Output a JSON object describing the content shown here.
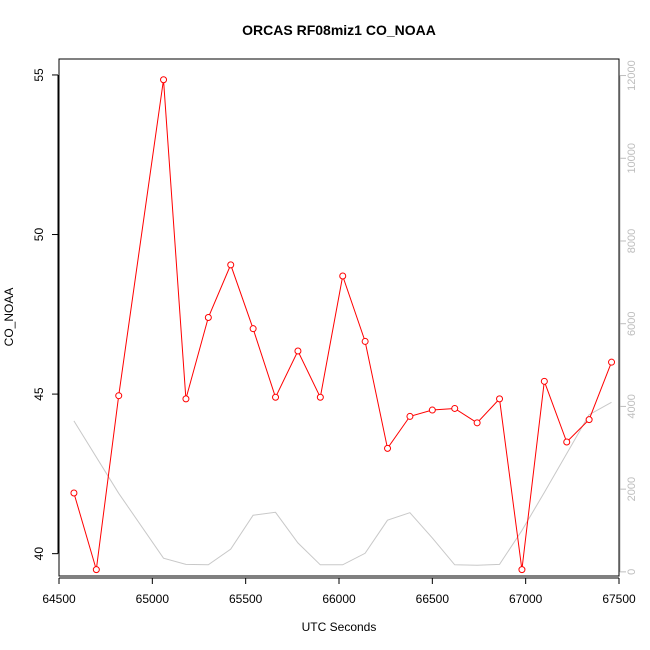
{
  "chart_data": {
    "type": "line",
    "title": "ORCAS RF08miz1 CO_NOAA",
    "xlabel": "UTC Seconds",
    "ylabel": "CO_NOAA",
    "xlim": [
      64500,
      67500
    ],
    "ylim": [
      39.3,
      55.5
    ],
    "y2lim": [
      -100,
      12400
    ],
    "x_ticks": [
      64500,
      65000,
      65500,
      66000,
      66500,
      67000,
      67500
    ],
    "y_ticks": [
      40,
      45,
      50,
      55
    ],
    "y2_ticks": [
      0,
      2000,
      4000,
      6000,
      8000,
      10000,
      12000
    ],
    "grid": false,
    "series": [
      {
        "axis": "left",
        "color": "#ff0000",
        "markers": true,
        "x": [
          64580,
          64700,
          64820,
          65060,
          65180,
          65300,
          65420,
          65540,
          65660,
          65780,
          65900,
          66020,
          66140,
          66260,
          66380,
          66500,
          66620,
          66740,
          66860,
          66980,
          67100,
          67220,
          67340,
          67460
        ],
        "y": [
          41.9,
          39.5,
          44.95,
          54.85,
          44.85,
          47.4,
          49.05,
          47.05,
          44.9,
          46.35,
          44.9,
          48.7,
          46.65,
          43.3,
          44.3,
          44.5,
          44.55,
          44.1,
          44.85,
          39.5,
          45.4,
          43.5,
          44.2,
          46.0
        ]
      },
      {
        "axis": "right",
        "color": "#c8c8c8",
        "markers": false,
        "x": [
          64580,
          64820,
          65060,
          65180,
          65300,
          65420,
          65540,
          65660,
          65780,
          65900,
          66020,
          66140,
          66260,
          66380,
          66500,
          66620,
          66740,
          66860,
          66980,
          67100,
          67220,
          67340,
          67460
        ],
        "y": [
          3650,
          1900,
          330,
          180,
          170,
          550,
          1370,
          1440,
          700,
          170,
          170,
          450,
          1250,
          1430,
          820,
          170,
          160,
          180,
          1000,
          1920,
          2860,
          3800,
          4100
        ]
      }
    ]
  }
}
